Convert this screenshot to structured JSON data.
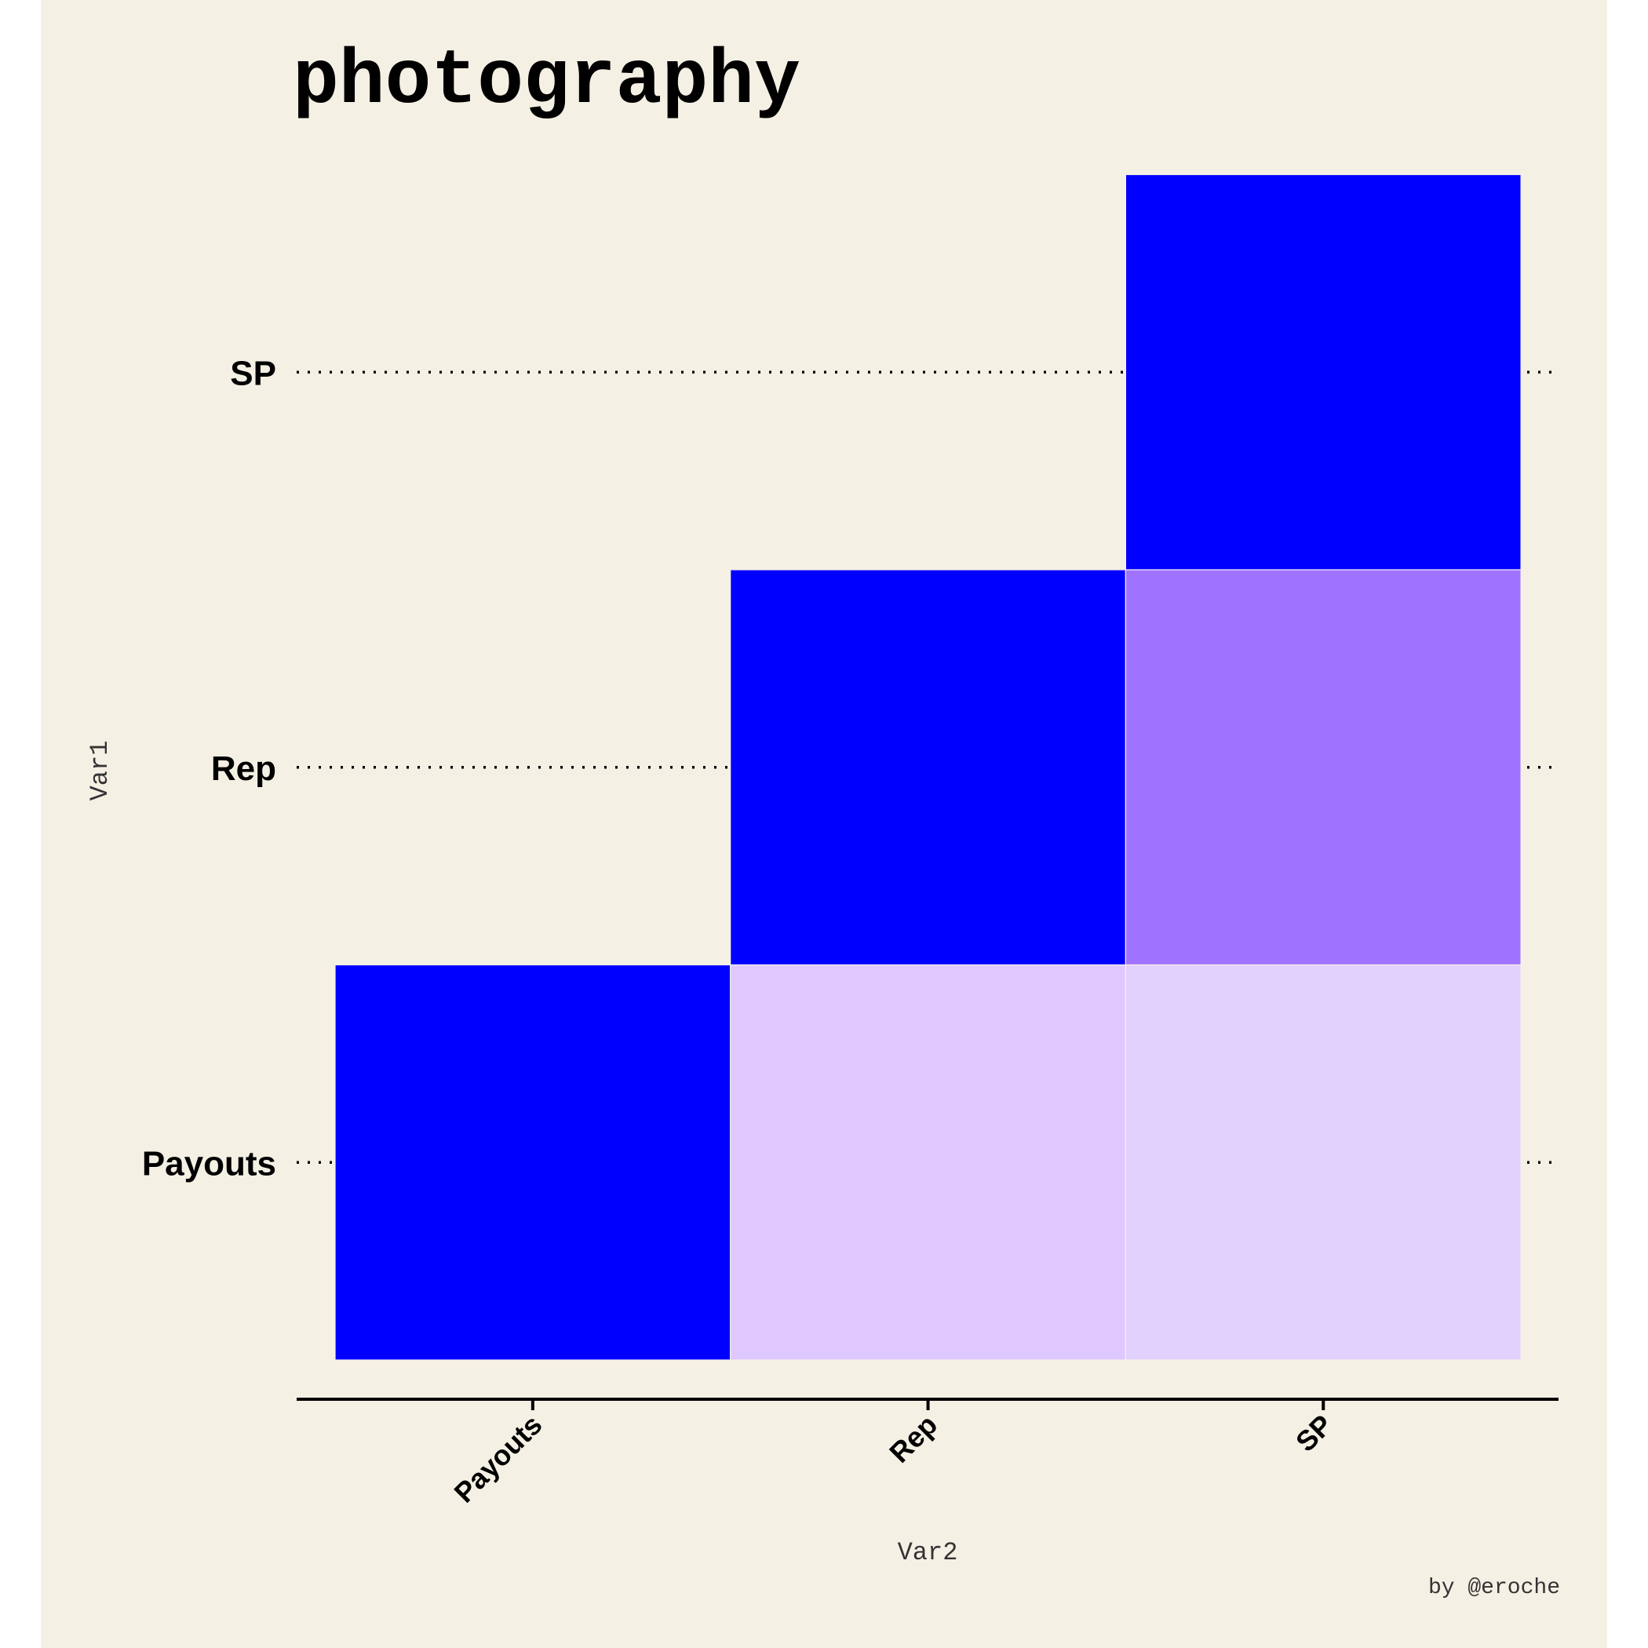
{
  "chart_data": {
    "type": "heatmap",
    "title": "photography",
    "xlabel": "Var2",
    "ylabel": "Var1",
    "caption": "by @eroche",
    "x_categories": [
      "Payouts",
      "Rep",
      "SP"
    ],
    "y_categories": [
      "Payouts",
      "Rep",
      "SP"
    ],
    "cells": [
      {
        "x": "Payouts",
        "y": "Payouts",
        "value": 1.0,
        "color": "#0000ff"
      },
      {
        "x": "Rep",
        "y": "Payouts",
        "value": 0.13,
        "color": "#dfc8ff"
      },
      {
        "x": "SP",
        "y": "Payouts",
        "value": 0.12,
        "color": "#e2d1fc"
      },
      {
        "x": "Rep",
        "y": "Rep",
        "value": 1.0,
        "color": "#0000ff"
      },
      {
        "x": "SP",
        "y": "Rep",
        "value": 0.55,
        "color": "#a073ff"
      },
      {
        "x": "SP",
        "y": "SP",
        "value": 1.0,
        "color": "#0000ff"
      }
    ],
    "legend": "none",
    "grid": "dotted horizontal lines at y ticks"
  },
  "colors": {
    "background": "#f5f0e4",
    "page": "#ffffff",
    "text": "#000000",
    "axis_title": "#333333"
  }
}
